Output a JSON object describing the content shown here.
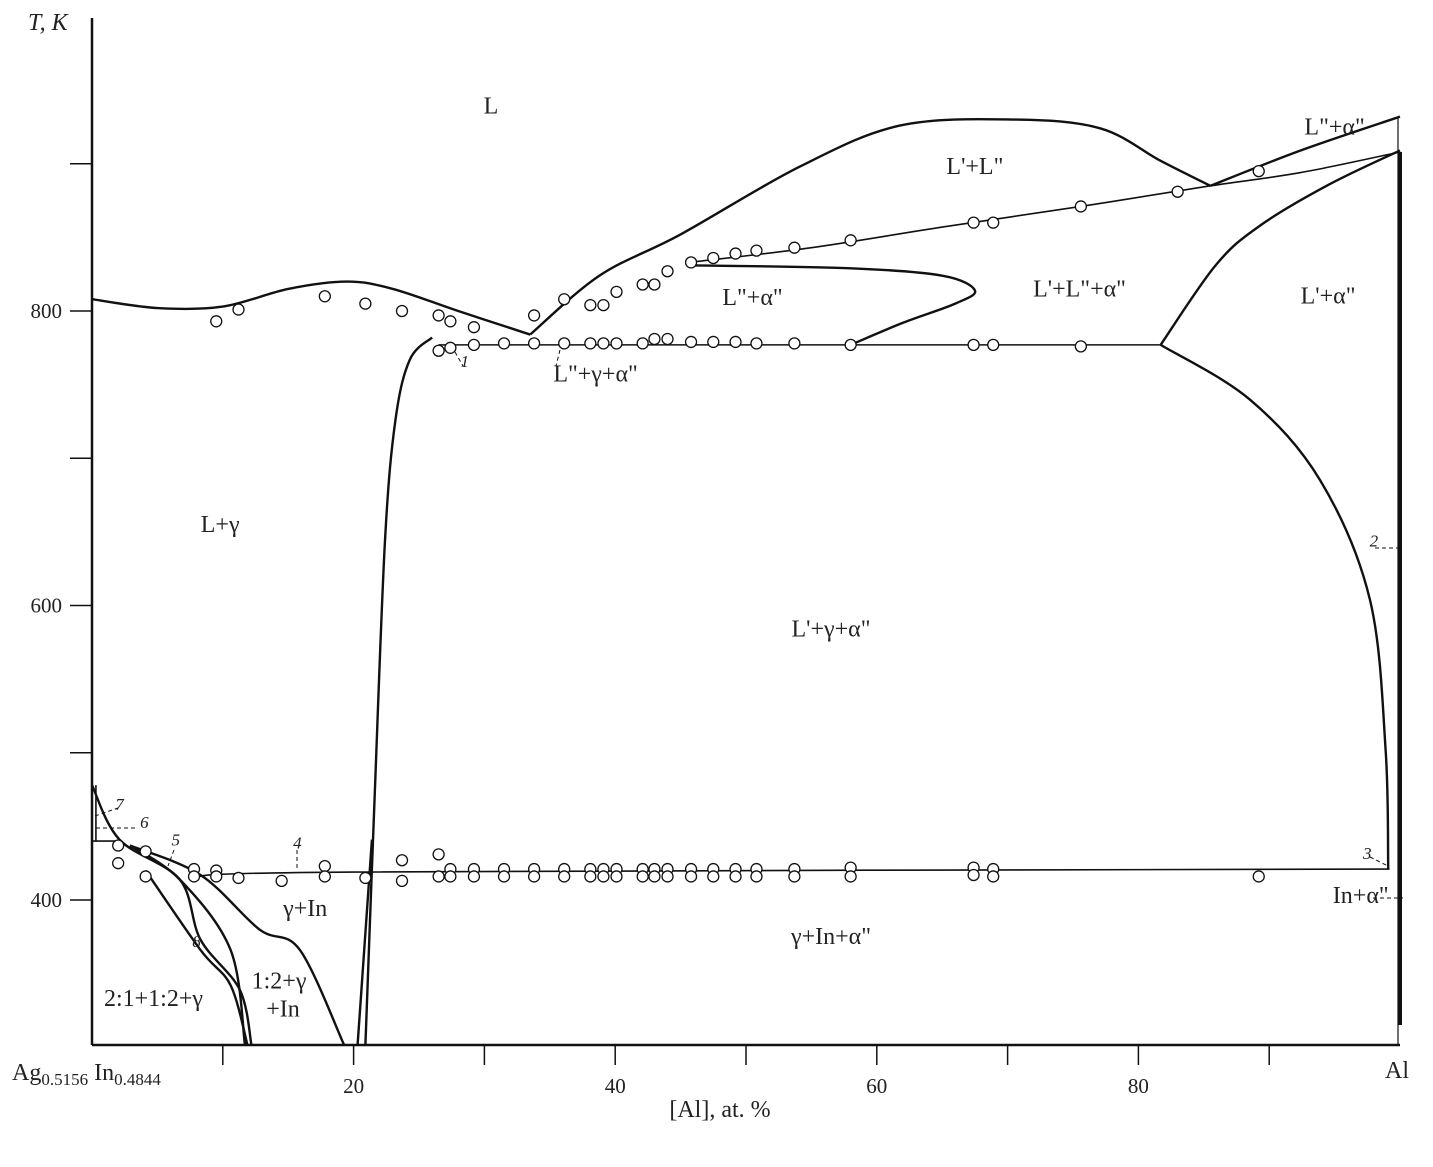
{
  "chart_data": {
    "type": "phase-diagram",
    "xlabel": "[Al], at. %",
    "ylabel": "T, K",
    "x_left_label": "Ag0.5156 In0.4844",
    "x_right_label": "Al",
    "xlim": [
      0,
      100
    ],
    "ylim": [
      300,
      1000
    ],
    "x_ticks": [
      10,
      20,
      30,
      40,
      50,
      60,
      70,
      80,
      90
    ],
    "x_tick_labels": [
      "20",
      "40",
      "60",
      "80"
    ],
    "x_tick_label_values": [
      20,
      40,
      60,
      80
    ],
    "y_ticks": [
      400,
      500,
      600,
      700,
      800,
      900
    ],
    "y_tick_labels": [
      "400",
      "600",
      "800"
    ],
    "y_tick_label_values": [
      400,
      600,
      800
    ],
    "grid": false,
    "line_color": "#111111",
    "marker": "open-circle",
    "regions": [
      {
        "text": "L",
        "x": 30.5,
        "T": 934
      },
      {
        "text": "L'+L\"",
        "x": 67.5,
        "T": 893
      },
      {
        "text": "L\"+α\"",
        "x": 95,
        "T": 920
      },
      {
        "text": "L\"+α\"",
        "x": 50.5,
        "T": 804
      },
      {
        "text": "L'+L\"+α\"",
        "x": 75.5,
        "T": 810
      },
      {
        "text": "L'+α\"",
        "x": 94.5,
        "T": 805
      },
      {
        "text": "L+γ",
        "x": 9.8,
        "T": 650
      },
      {
        "text": "L\"+γ+α\"",
        "x": 38.5,
        "T": 752
      },
      {
        "text": "L'+γ+α\"",
        "x": 56.5,
        "T": 579
      },
      {
        "text": "γ+In",
        "x": 16.3,
        "T": 389
      },
      {
        "text": "γ+In+α\"",
        "x": 56.5,
        "T": 370
      },
      {
        "text": "In+α\"",
        "x": 97,
        "T": 398
      },
      {
        "text": "2:1+1:2+γ",
        "x": 4.7,
        "T": 328
      },
      {
        "text": "1:2+γ",
        "x": 14.3,
        "T": 340
      },
      {
        "text": "+In",
        "x": 14.6,
        "T": 321
      }
    ],
    "annotations": [
      {
        "text": "1",
        "x": 28.5,
        "T": 762
      },
      {
        "text": "2",
        "x": 98,
        "T": 640
      },
      {
        "text": "3",
        "x": 97.5,
        "T": 428
      },
      {
        "text": "4",
        "x": 15.7,
        "T": 435
      },
      {
        "text": "5",
        "x": 6.4,
        "T": 437
      },
      {
        "text": "6",
        "x": 4.0,
        "T": 449
      },
      {
        "text": "7",
        "x": 2.1,
        "T": 461
      },
      {
        "text": "8",
        "x": 8.0,
        "T": 368
      }
    ],
    "boundaries": [
      {
        "name": "liquidus-left",
        "points": [
          [
            0,
            808
          ],
          [
            5,
            802
          ],
          [
            10,
            803
          ],
          [
            15,
            815
          ],
          [
            19.5,
            820
          ],
          [
            23,
            815
          ],
          [
            28,
            800
          ],
          [
            33.5,
            784
          ]
        ]
      },
      {
        "name": "miscibility-dome",
        "points": [
          [
            33.5,
            784
          ],
          [
            38.8,
            824
          ],
          [
            45,
            852
          ],
          [
            54.1,
            898
          ],
          [
            61.8,
            926
          ],
          [
            70.6,
            930
          ],
          [
            77.1,
            924
          ],
          [
            81.7,
            902
          ],
          [
            85.5,
            885
          ]
        ]
      },
      {
        "name": "liquidus-al",
        "points": [
          [
            85.5,
            885
          ],
          [
            92.4,
            909
          ],
          [
            100,
            932
          ]
        ]
      },
      {
        "name": "monotectic",
        "points": [
          [
            45.7,
            833
          ],
          [
            55,
            843
          ],
          [
            65,
            857
          ],
          [
            75.6,
            871
          ],
          [
            85.5,
            885
          ],
          [
            92.4,
            894
          ],
          [
            100,
            908
          ]
        ]
      },
      {
        "name": "l2-alpha-loop",
        "points": [
          [
            45.7,
            831
          ],
          [
            58,
            829
          ],
          [
            65,
            824
          ],
          [
            67.5,
            814
          ],
          [
            66,
            805
          ],
          [
            62,
            792
          ],
          [
            58,
            777
          ]
        ]
      },
      {
        "name": "eutectic-upper",
        "points": [
          [
            26.5,
            777
          ],
          [
            81.7,
            777
          ]
        ]
      },
      {
        "name": "l1-alpha",
        "points": [
          [
            81.7,
            777
          ],
          [
            85.9,
            831
          ],
          [
            89.3,
            858
          ],
          [
            94.6,
            886
          ],
          [
            100,
            909
          ]
        ]
      },
      {
        "name": "alpha-solvus",
        "points": [
          [
            81.7,
            777
          ],
          [
            88.5,
            740
          ],
          [
            93.9,
            685
          ],
          [
            97.7,
            604
          ],
          [
            98.9,
            502
          ],
          [
            99.1,
            421
          ]
        ]
      },
      {
        "name": "eutectic-lower",
        "points": [
          [
            7.5,
            415
          ],
          [
            20,
            419
          ],
          [
            99.2,
            421
          ]
        ]
      },
      {
        "name": "gamma-boundary",
        "points": [
          [
            26,
            782
          ],
          [
            24.3,
            767
          ],
          [
            23.2,
            726
          ],
          [
            22.4,
            644
          ],
          [
            21.6,
            468
          ],
          [
            20.9,
            301
          ]
        ]
      },
      {
        "name": "gamma-boundary-2",
        "points": [
          [
            21.4,
            441
          ],
          [
            20.3,
            301
          ]
        ]
      },
      {
        "name": "low-curve-a",
        "points": [
          [
            0,
            478
          ],
          [
            2.1,
            441
          ],
          [
            6.7,
            414
          ],
          [
            8.3,
            373
          ],
          [
            11.3,
            339
          ],
          [
            12.2,
            301
          ]
        ]
      },
      {
        "name": "low-curve-b",
        "points": [
          [
            2.9,
            437
          ],
          [
            6.7,
            414
          ],
          [
            10.6,
            366
          ],
          [
            11.7,
            301
          ]
        ]
      },
      {
        "name": "low-curve-c",
        "points": [
          [
            2.9,
            437
          ],
          [
            8.3,
            417
          ],
          [
            12.8,
            380
          ],
          [
            15.9,
            366
          ],
          [
            19.3,
            301
          ]
        ]
      },
      {
        "name": "curve-8",
        "points": [
          [
            4.1,
            420
          ],
          [
            8.3,
            366
          ],
          [
            10.6,
            342
          ],
          [
            11.9,
            301
          ]
        ]
      },
      {
        "name": "short-horizontal",
        "points": [
          [
            0,
            440
          ],
          [
            2.1,
            440
          ]
        ]
      },
      {
        "name": "short-vertical",
        "points": [
          [
            0.3,
            478
          ],
          [
            0.3,
            440
          ]
        ]
      }
    ],
    "series": [
      {
        "points": [
          [
            9.5,
            793
          ],
          [
            11.2,
            801
          ],
          [
            17.8,
            810
          ],
          [
            20.9,
            805
          ],
          [
            23.7,
            800
          ],
          [
            26.5,
            797
          ],
          [
            27.4,
            793
          ],
          [
            29.2,
            789
          ],
          [
            33.8,
            797
          ],
          [
            36.1,
            808
          ],
          [
            38.1,
            804
          ],
          [
            39.1,
            804
          ],
          [
            40.1,
            813
          ],
          [
            42.1,
            818
          ],
          [
            43.0,
            818
          ],
          [
            44.0,
            827
          ],
          [
            45.8,
            833
          ],
          [
            47.5,
            836
          ],
          [
            49.2,
            839
          ],
          [
            50.8,
            841
          ],
          [
            53.7,
            843
          ],
          [
            58.0,
            848
          ],
          [
            67.4,
            860
          ],
          [
            68.9,
            860
          ],
          [
            75.6,
            871
          ],
          [
            83.0,
            881
          ],
          [
            89.2,
            895
          ]
        ]
      },
      {
        "points": [
          [
            26.5,
            773
          ],
          [
            27.4,
            775
          ],
          [
            29.2,
            777
          ],
          [
            31.5,
            778
          ],
          [
            33.8,
            778
          ],
          [
            36.1,
            778
          ],
          [
            38.1,
            778
          ],
          [
            39.1,
            778
          ],
          [
            40.1,
            778
          ],
          [
            42.1,
            778
          ],
          [
            43.0,
            781
          ],
          [
            44.0,
            781
          ],
          [
            45.8,
            779
          ],
          [
            47.5,
            779
          ],
          [
            49.2,
            779
          ],
          [
            50.8,
            778
          ],
          [
            53.7,
            778
          ],
          [
            58.0,
            777
          ],
          [
            67.4,
            777
          ],
          [
            68.9,
            777
          ],
          [
            75.6,
            776
          ]
        ]
      },
      {
        "points": [
          [
            2.0,
            437
          ],
          [
            2.0,
            425
          ],
          [
            4.1,
            433
          ],
          [
            4.1,
            416
          ],
          [
            7.8,
            421
          ],
          [
            7.8,
            416
          ],
          [
            9.5,
            420
          ],
          [
            9.5,
            416
          ],
          [
            11.2,
            415
          ],
          [
            14.5,
            413
          ],
          [
            17.8,
            423
          ],
          [
            17.8,
            416
          ],
          [
            20.9,
            415
          ],
          [
            23.7,
            427
          ],
          [
            23.7,
            413
          ],
          [
            26.5,
            431
          ],
          [
            26.5,
            416
          ],
          [
            27.4,
            421
          ],
          [
            27.4,
            416
          ],
          [
            29.2,
            421
          ],
          [
            29.2,
            416
          ],
          [
            31.5,
            421
          ],
          [
            31.5,
            416
          ],
          [
            33.8,
            421
          ],
          [
            33.8,
            416
          ],
          [
            36.1,
            421
          ],
          [
            36.1,
            416
          ],
          [
            38.1,
            421
          ],
          [
            38.1,
            416
          ],
          [
            39.1,
            421
          ],
          [
            39.1,
            416
          ],
          [
            40.1,
            421
          ],
          [
            40.1,
            416
          ],
          [
            42.1,
            421
          ],
          [
            42.1,
            416
          ],
          [
            43.0,
            421
          ],
          [
            43.0,
            416
          ],
          [
            44.0,
            421
          ],
          [
            44.0,
            416
          ],
          [
            45.8,
            421
          ],
          [
            45.8,
            416
          ],
          [
            47.5,
            421
          ],
          [
            47.5,
            416
          ],
          [
            49.2,
            421
          ],
          [
            49.2,
            416
          ],
          [
            50.8,
            421
          ],
          [
            50.8,
            416
          ],
          [
            53.7,
            421
          ],
          [
            53.7,
            416
          ],
          [
            58.0,
            422
          ],
          [
            58.0,
            416
          ],
          [
            67.4,
            422
          ],
          [
            67.4,
            417
          ],
          [
            68.9,
            421
          ],
          [
            68.9,
            416
          ],
          [
            89.2,
            416
          ]
        ]
      }
    ]
  }
}
